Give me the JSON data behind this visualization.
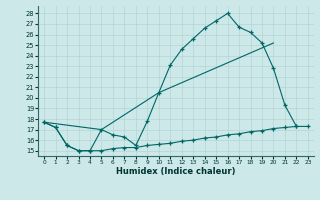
{
  "xlabel": "Humidex (Indice chaleur)",
  "bg_color": "#cce8e8",
  "line_color": "#006666",
  "xlim": [
    -0.5,
    23.5
  ],
  "ylim": [
    14.5,
    28.7
  ],
  "xticks": [
    0,
    1,
    2,
    3,
    4,
    5,
    6,
    7,
    8,
    9,
    10,
    11,
    12,
    13,
    14,
    15,
    16,
    17,
    18,
    19,
    20,
    21,
    22,
    23
  ],
  "yticks": [
    15,
    16,
    17,
    18,
    19,
    20,
    21,
    22,
    23,
    24,
    25,
    26,
    27,
    28
  ],
  "line1_x": [
    0,
    1,
    2,
    3,
    4,
    5,
    6,
    7,
    8,
    9,
    10,
    11,
    12,
    13,
    14,
    15,
    16,
    17,
    18,
    19,
    20,
    21,
    22
  ],
  "line1_y": [
    17.7,
    17.2,
    15.5,
    15.0,
    15.0,
    17.0,
    16.5,
    16.3,
    15.5,
    17.8,
    20.5,
    23.1,
    24.6,
    25.6,
    26.6,
    27.3,
    28.0,
    26.7,
    26.2,
    25.2,
    22.8,
    19.3,
    17.3
  ],
  "line2_x": [
    0,
    5,
    10,
    20
  ],
  "line2_y": [
    17.7,
    17.0,
    20.5,
    25.2
  ],
  "line3_x": [
    0,
    1,
    2,
    3,
    4,
    5,
    6,
    7,
    8,
    9,
    10,
    11,
    12,
    13,
    14,
    15,
    16,
    17,
    18,
    19,
    20,
    21,
    22,
    23
  ],
  "line3_y": [
    17.7,
    17.2,
    15.5,
    15.0,
    15.0,
    15.0,
    15.2,
    15.3,
    15.3,
    15.5,
    15.6,
    15.7,
    15.9,
    16.0,
    16.2,
    16.3,
    16.5,
    16.6,
    16.8,
    16.9,
    17.1,
    17.2,
    17.3,
    17.3
  ]
}
